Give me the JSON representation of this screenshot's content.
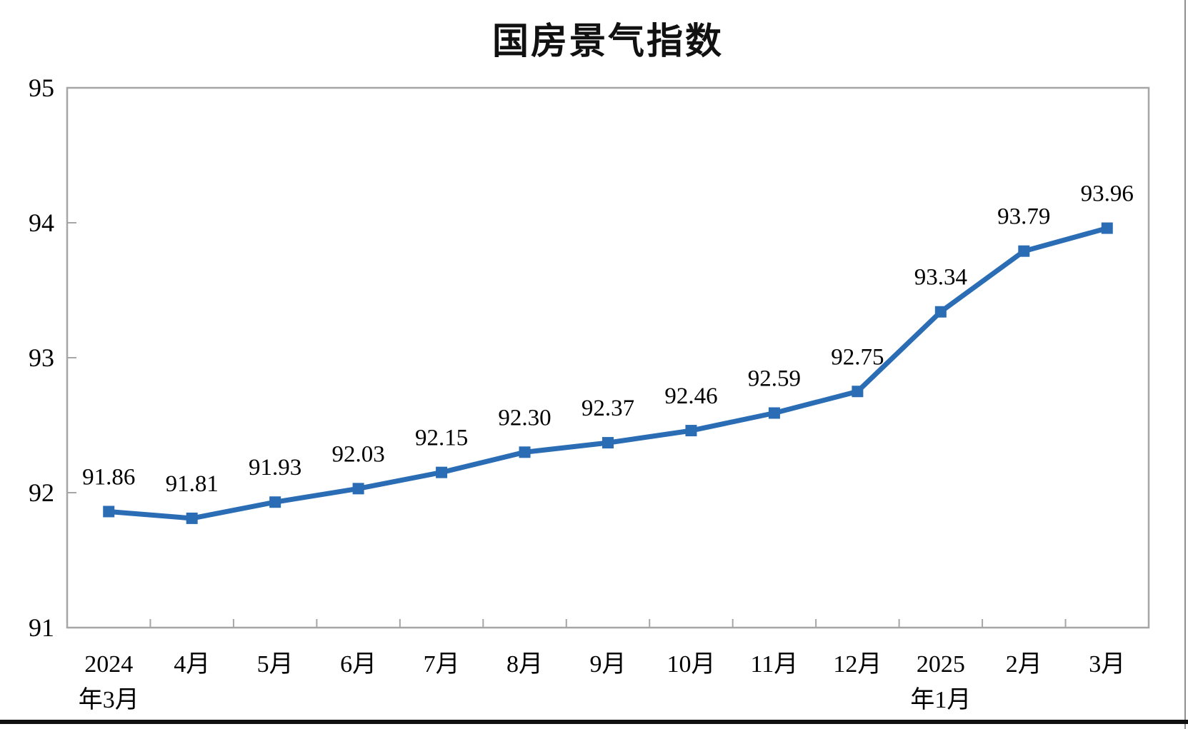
{
  "page": {
    "title": "国房景气指数"
  },
  "chart_data": {
    "type": "line",
    "title": "国房景气指数",
    "categories": [
      "2024年3月",
      "4月",
      "5月",
      "6月",
      "7月",
      "8月",
      "9月",
      "10月",
      "11月",
      "12月",
      "2025年1月",
      "2月",
      "3月"
    ],
    "x_tick_lines": [
      [
        "2024",
        "年3月"
      ],
      [
        "4月",
        ""
      ],
      [
        "5月",
        ""
      ],
      [
        "6月",
        ""
      ],
      [
        "7月",
        ""
      ],
      [
        "8月",
        ""
      ],
      [
        "9月",
        ""
      ],
      [
        "10月",
        ""
      ],
      [
        "11月",
        ""
      ],
      [
        "12月",
        ""
      ],
      [
        "2025",
        "年1月"
      ],
      [
        "2月",
        ""
      ],
      [
        "3月",
        ""
      ]
    ],
    "series": [
      {
        "name": "国房景气指数",
        "values": [
          91.86,
          91.81,
          91.93,
          92.03,
          92.15,
          92.3,
          92.37,
          92.46,
          92.59,
          92.75,
          93.34,
          93.79,
          93.96
        ],
        "labels": [
          "91.86",
          "91.81",
          "91.93",
          "92.03",
          "92.15",
          "92.30",
          "92.37",
          "92.46",
          "92.59",
          "92.75",
          "93.34",
          "93.79",
          "93.96"
        ]
      }
    ],
    "ylim": [
      91,
      95
    ],
    "y_ticks": [
      "91",
      "92",
      "93",
      "94",
      "95"
    ],
    "grid": false,
    "legend_position": "none",
    "marker": "square",
    "colors": {
      "line": "#2A6DB5",
      "marker": "#2A6DB5",
      "axis": "#A6A6A6",
      "text": "#000000"
    }
  }
}
